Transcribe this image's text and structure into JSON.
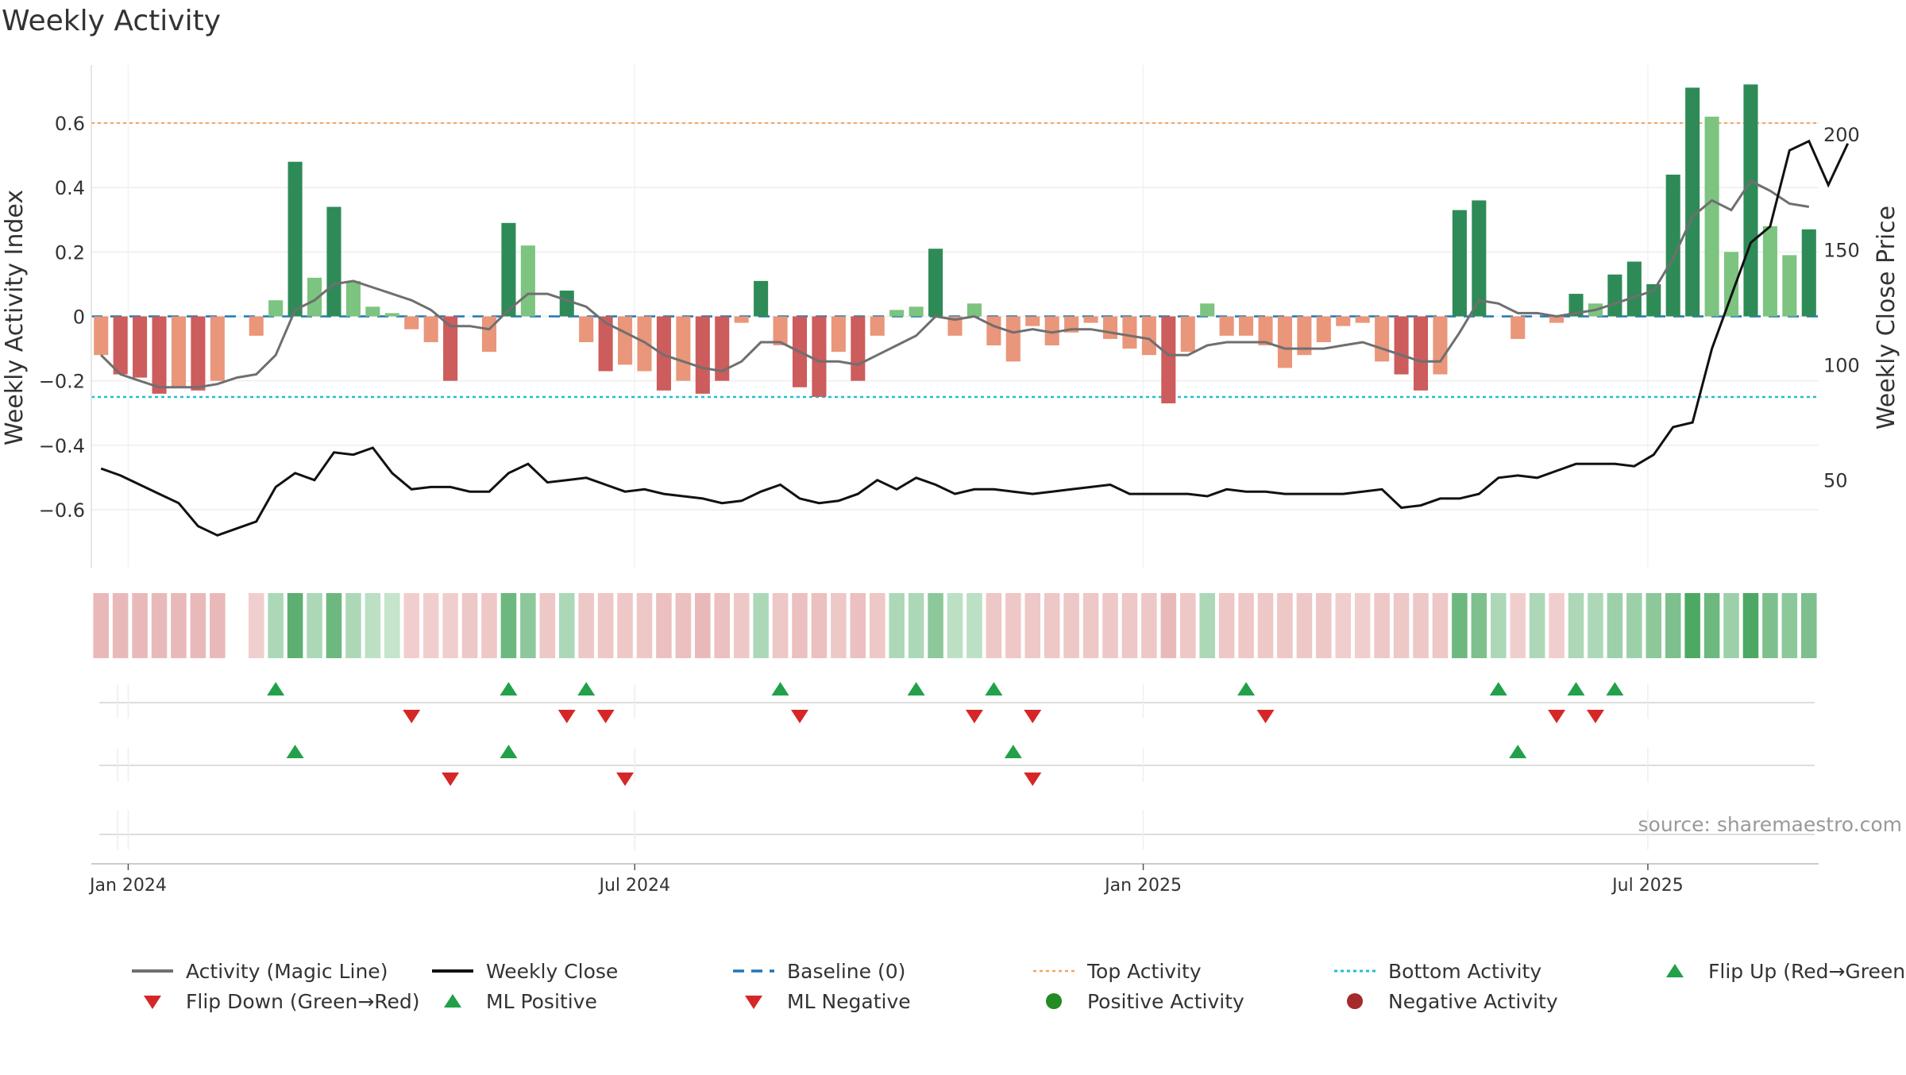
{
  "title": "Weekly Activity",
  "source": "source: sharemaestro.com",
  "chart_data": {
    "type": "bar",
    "title": "Weekly Activity",
    "ylabel": "Weekly Activity Index",
    "y2label": "Weekly Close Price",
    "ylim": [
      -0.78,
      0.78
    ],
    "y2lim": [
      12,
      230
    ],
    "yticks": [
      0.6,
      0.4,
      0.2,
      0,
      -0.2,
      -0.4,
      -0.6
    ],
    "ytick_labels": [
      "0.6",
      "0.4",
      "0.2",
      "0",
      "−0.2",
      "−0.4",
      "−0.6"
    ],
    "y2ticks": [
      200,
      150,
      100,
      50
    ],
    "y2tick_labels": [
      "200",
      "150",
      "100",
      "50"
    ],
    "xticks": [
      {
        "week": 1.4,
        "label": "Jan 2024"
      },
      {
        "week": 27.5,
        "label": "Jul 2024"
      },
      {
        "week": 53.7,
        "label": "Jan 2025"
      },
      {
        "week": 79.7,
        "label": "Jul 2025"
      }
    ],
    "activity": [
      -0.12,
      -0.18,
      -0.19,
      -0.24,
      -0.22,
      -0.23,
      -0.2,
      0.0,
      -0.06,
      0.05,
      0.48,
      0.12,
      0.34,
      0.11,
      0.03,
      0.01,
      -0.04,
      -0.08,
      -0.2,
      0.0,
      -0.11,
      0.29,
      0.22,
      0.0,
      0.08,
      -0.08,
      -0.17,
      -0.15,
      -0.17,
      -0.23,
      -0.2,
      -0.24,
      -0.2,
      -0.02,
      0.11,
      -0.09,
      -0.22,
      -0.25,
      -0.11,
      -0.2,
      -0.06,
      0.02,
      0.03,
      0.21,
      -0.06,
      0.04,
      -0.09,
      -0.14,
      -0.03,
      -0.09,
      -0.05,
      -0.02,
      -0.07,
      -0.1,
      -0.12,
      -0.27,
      -0.11,
      0.04,
      -0.06,
      -0.06,
      -0.09,
      -0.16,
      -0.12,
      -0.08,
      -0.03,
      -0.02,
      -0.14,
      -0.18,
      -0.23,
      -0.18,
      0.33,
      0.36,
      0.0,
      -0.07,
      0.0,
      -0.02,
      0.07,
      0.04,
      0.13,
      0.17,
      0.1,
      0.44,
      0.71,
      0.62,
      0.2,
      0.72,
      0.28,
      0.19,
      0.27
    ],
    "magic_line": [
      -0.12,
      -0.18,
      -0.2,
      -0.22,
      -0.22,
      -0.22,
      -0.21,
      -0.19,
      -0.18,
      -0.12,
      0.02,
      0.05,
      0.1,
      0.11,
      0.09,
      0.07,
      0.05,
      0.02,
      -0.03,
      -0.03,
      -0.04,
      0.02,
      0.07,
      0.07,
      0.05,
      0.03,
      -0.02,
      -0.05,
      -0.08,
      -0.12,
      -0.14,
      -0.16,
      -0.17,
      -0.14,
      -0.08,
      -0.08,
      -0.11,
      -0.14,
      -0.14,
      -0.15,
      -0.12,
      -0.09,
      -0.06,
      0.0,
      -0.01,
      0.0,
      -0.03,
      -0.05,
      -0.04,
      -0.05,
      -0.04,
      -0.04,
      -0.05,
      -0.06,
      -0.07,
      -0.12,
      -0.12,
      -0.09,
      -0.08,
      -0.08,
      -0.08,
      -0.1,
      -0.1,
      -0.1,
      -0.09,
      -0.08,
      -0.1,
      -0.12,
      -0.14,
      -0.14,
      -0.05,
      0.05,
      0.04,
      0.01,
      0.01,
      0.0,
      0.01,
      0.02,
      0.04,
      0.06,
      0.08,
      0.18,
      0.31,
      0.36,
      0.33,
      0.42,
      0.39,
      0.35,
      0.34
    ],
    "weekly_close": [
      55,
      52,
      48,
      44,
      40,
      30,
      26,
      29,
      32,
      47,
      53,
      50,
      62,
      61,
      64,
      53,
      46,
      47,
      47,
      45,
      45,
      53,
      57,
      49,
      50,
      51,
      48,
      45,
      46,
      44,
      43,
      42,
      40,
      41,
      45,
      48,
      42,
      40,
      41,
      44,
      50,
      46,
      51,
      48,
      44,
      46,
      46,
      45,
      44,
      45,
      46,
      47,
      48,
      44,
      44,
      44,
      44,
      43,
      46,
      45,
      45,
      44,
      44,
      44,
      44,
      45,
      46,
      38,
      39,
      42,
      42,
      44,
      51,
      52,
      51,
      54,
      57,
      57,
      57,
      56,
      61,
      73,
      75,
      107,
      130,
      153,
      160,
      193,
      197,
      178,
      196
    ],
    "colorbar": [
      -0.5,
      -0.5,
      -0.5,
      -0.5,
      -0.5,
      -0.5,
      -0.5,
      null,
      -0.2,
      0.3,
      0.8,
      0.3,
      0.7,
      0.3,
      0.2,
      0.15,
      -0.2,
      -0.2,
      -0.2,
      -0.3,
      -0.3,
      0.7,
      0.5,
      -0.3,
      0.3,
      -0.3,
      -0.3,
      -0.3,
      -0.3,
      -0.4,
      -0.4,
      -0.5,
      -0.4,
      -0.3,
      0.3,
      -0.3,
      -0.4,
      -0.4,
      -0.3,
      -0.4,
      -0.3,
      0.3,
      0.3,
      0.5,
      0.2,
      0.2,
      -0.3,
      -0.3,
      -0.3,
      -0.3,
      -0.3,
      -0.3,
      -0.3,
      -0.3,
      -0.3,
      -0.5,
      -0.3,
      0.3,
      -0.3,
      -0.3,
      -0.3,
      -0.3,
      -0.3,
      -0.3,
      -0.2,
      -0.2,
      -0.3,
      -0.3,
      -0.3,
      -0.3,
      0.7,
      0.6,
      0.3,
      -0.2,
      0.3,
      -0.2,
      0.3,
      0.3,
      0.4,
      0.4,
      0.5,
      0.6,
      0.9,
      0.7,
      0.4,
      0.9,
      0.6,
      0.5,
      0.6
    ],
    "flip_up": [
      9,
      21,
      25,
      35,
      42,
      46,
      59,
      72,
      76,
      78
    ],
    "flip_down": [
      16,
      24,
      26,
      36,
      45,
      48,
      60,
      75,
      77
    ],
    "ml_positive": [
      10,
      21,
      47,
      73
    ],
    "ml_negative": [
      18,
      27,
      48
    ],
    "top_activity": 0.6,
    "bottom_activity": -0.25,
    "baseline": 0,
    "legend": [
      {
        "key": "magic",
        "label": "Activity (Magic Line)"
      },
      {
        "key": "close",
        "label": "Weekly Close"
      },
      {
        "key": "baseline",
        "label": "Baseline (0)"
      },
      {
        "key": "top",
        "label": "Top Activity"
      },
      {
        "key": "bottom",
        "label": "Bottom Activity"
      },
      {
        "key": "flipup",
        "label": "Flip Up (Red→Green)"
      },
      {
        "key": "flipdown",
        "label": "Flip Down (Green→Red)"
      },
      {
        "key": "mlpos",
        "label": "ML Positive"
      },
      {
        "key": "mlneg",
        "label": "ML Negative"
      },
      {
        "key": "posact",
        "label": "Positive Activity"
      },
      {
        "key": "negact",
        "label": "Negative Activity"
      }
    ],
    "colors": {
      "pos_strong": "#2e8b57",
      "pos_light": "#7cc47f",
      "neg_strong": "#cd5c5c",
      "neg_light": "#e9967a",
      "magic": "#6f6f6f",
      "close": "#111111",
      "baseline": "#1f77b4",
      "top": "#f4a460",
      "bottom": "#20c0d0",
      "up": "#22a04a",
      "down": "#d62728",
      "pos_dot": "#228b22",
      "neg_dot": "#a52a2a"
    }
  }
}
